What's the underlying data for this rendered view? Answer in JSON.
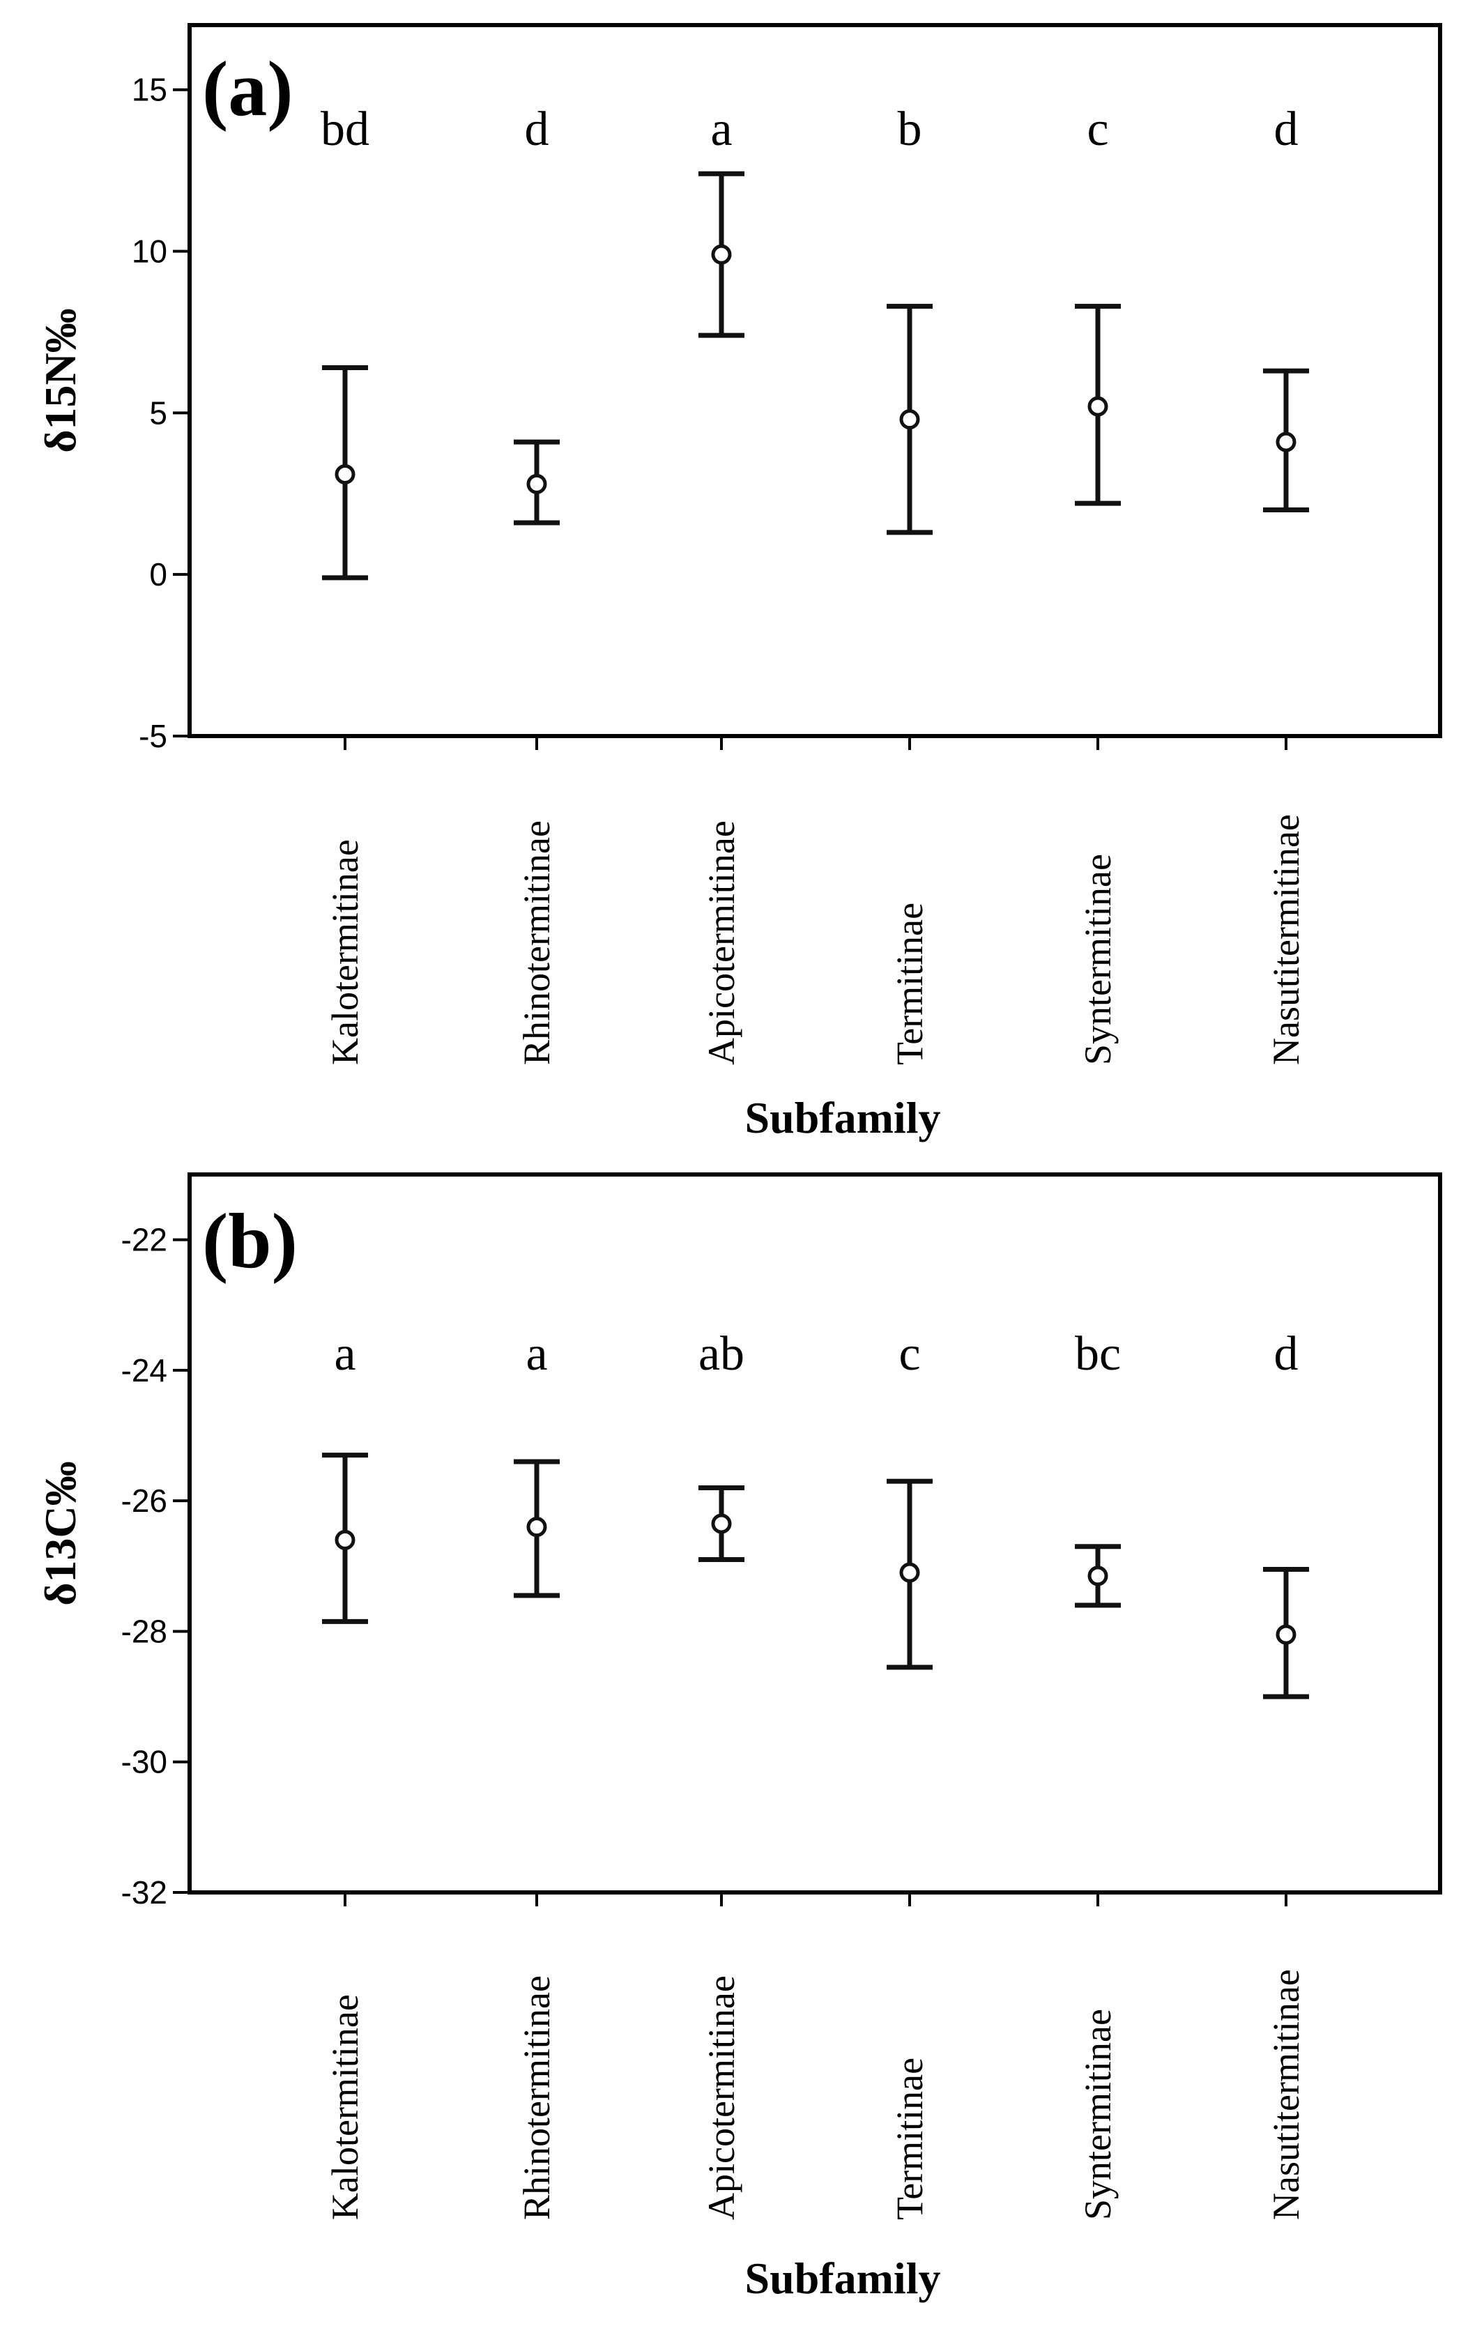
{
  "chart_data": [
    {
      "type": "errorbar",
      "panel_label": "(a)",
      "xlabel": "Subfamily",
      "ylabel": "δ15N‰",
      "ylim": [
        -5,
        17
      ],
      "yticks": [
        -5,
        0,
        5,
        10,
        15
      ],
      "categories": [
        "Kalotermitinae",
        "Rhinotermitinae",
        "Apicotermitinae",
        "Termitinae",
        "Syntermitinae",
        "Nasutitermitinae"
      ],
      "values": [
        3.1,
        2.8,
        9.9,
        4.8,
        5.2,
        4.1
      ],
      "lower": [
        -0.1,
        1.6,
        7.4,
        1.3,
        2.2,
        2.0
      ],
      "upper": [
        6.4,
        4.1,
        12.4,
        8.3,
        8.3,
        6.3
      ],
      "significance": [
        "bd",
        "d",
        "a",
        "b",
        "c",
        "d"
      ]
    },
    {
      "type": "errorbar",
      "panel_label": "(b)",
      "xlabel": "Subfamily",
      "ylabel": "δ13C‰",
      "ylim": [
        -32,
        -21
      ],
      "yticks": [
        -32,
        -30,
        -28,
        -26,
        -24,
        -22
      ],
      "categories": [
        "Kalotermitinae",
        "Rhinotermitinae",
        "Apicotermitinae",
        "Termitinae",
        "Syntermitinae",
        "Nasutitermitinae"
      ],
      "values": [
        -26.6,
        -26.4,
        -26.35,
        -27.1,
        -27.15,
        -28.05
      ],
      "lower": [
        -27.85,
        -27.45,
        -26.9,
        -28.55,
        -27.6,
        -29.0
      ],
      "upper": [
        -25.3,
        -25.4,
        -25.8,
        -25.7,
        -26.7,
        -27.05
      ],
      "significance": [
        "a",
        "a",
        "ab",
        "c",
        "bc",
        "d"
      ]
    }
  ]
}
